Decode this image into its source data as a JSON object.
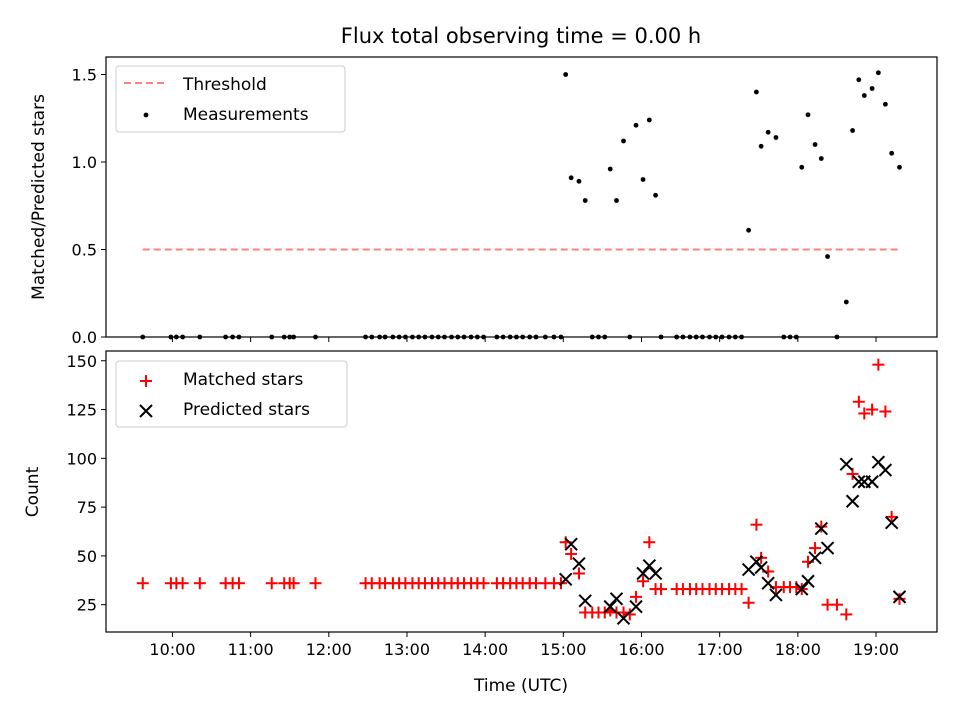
{
  "chart_data": [
    {
      "type": "scatter",
      "title": "Flux total observing time = 0.00 h",
      "ylabel": "Matched/Predicted stars",
      "xlabel": "",
      "x_unit": "hours (UTC)",
      "xlim": [
        9.15,
        19.78
      ],
      "ylim": [
        0,
        1.6
      ],
      "yticks": [
        0.0,
        0.5,
        1.0,
        1.5
      ],
      "ytick_labels": [
        "0.0",
        "0.5",
        "1.0",
        "1.5"
      ],
      "grid": false,
      "legend_position": "top-left",
      "legend": [
        "Threshold",
        "Measurements"
      ],
      "threshold": {
        "name": "Threshold",
        "value": 0.5,
        "x_range": [
          9.62,
          19.3
        ],
        "color": "#ff8080",
        "style": "dashed"
      },
      "series": [
        {
          "name": "Measurements",
          "marker": "dot",
          "color": "#000000",
          "points": [
            [
              9.62,
              0
            ],
            [
              9.98,
              0
            ],
            [
              10.05,
              0
            ],
            [
              10.13,
              0
            ],
            [
              10.35,
              0
            ],
            [
              10.68,
              0
            ],
            [
              10.77,
              0
            ],
            [
              10.85,
              0
            ],
            [
              11.27,
              0
            ],
            [
              11.43,
              0
            ],
            [
              11.5,
              0
            ],
            [
              11.55,
              0
            ],
            [
              11.83,
              0
            ],
            [
              12.47,
              0
            ],
            [
              12.55,
              0
            ],
            [
              12.65,
              0
            ],
            [
              12.72,
              0
            ],
            [
              12.82,
              0
            ],
            [
              12.9,
              0
            ],
            [
              12.98,
              0
            ],
            [
              13.07,
              0
            ],
            [
              13.15,
              0
            ],
            [
              13.23,
              0
            ],
            [
              13.32,
              0
            ],
            [
              13.4,
              0
            ],
            [
              13.48,
              0
            ],
            [
              13.57,
              0
            ],
            [
              13.65,
              0
            ],
            [
              13.73,
              0
            ],
            [
              13.82,
              0
            ],
            [
              13.9,
              0
            ],
            [
              13.98,
              0
            ],
            [
              14.15,
              0
            ],
            [
              14.23,
              0
            ],
            [
              14.32,
              0
            ],
            [
              14.4,
              0
            ],
            [
              14.48,
              0
            ],
            [
              14.57,
              0
            ],
            [
              14.65,
              0
            ],
            [
              14.77,
              0
            ],
            [
              14.88,
              0
            ],
            [
              14.97,
              0
            ],
            [
              15.03,
              1.5
            ],
            [
              15.1,
              0.91
            ],
            [
              15.2,
              0.89
            ],
            [
              15.28,
              0.78
            ],
            [
              15.37,
              0
            ],
            [
              15.45,
              0
            ],
            [
              15.53,
              0
            ],
            [
              15.6,
              0.96
            ],
            [
              15.68,
              0.78
            ],
            [
              15.77,
              1.12
            ],
            [
              15.85,
              0
            ],
            [
              15.93,
              1.21
            ],
            [
              16.02,
              0.9
            ],
            [
              16.1,
              1.24
            ],
            [
              16.18,
              0.81
            ],
            [
              16.25,
              0
            ],
            [
              16.45,
              0
            ],
            [
              16.53,
              0
            ],
            [
              16.62,
              0
            ],
            [
              16.7,
              0
            ],
            [
              16.78,
              0
            ],
            [
              16.87,
              0
            ],
            [
              16.95,
              0
            ],
            [
              17.03,
              0
            ],
            [
              17.12,
              0
            ],
            [
              17.2,
              0
            ],
            [
              17.28,
              0
            ],
            [
              17.37,
              0.61
            ],
            [
              17.47,
              1.4
            ],
            [
              17.53,
              1.09
            ],
            [
              17.62,
              1.17
            ],
            [
              17.72,
              1.14
            ],
            [
              17.82,
              0
            ],
            [
              17.9,
              0
            ],
            [
              17.98,
              0
            ],
            [
              18.05,
              0.97
            ],
            [
              18.13,
              1.27
            ],
            [
              18.22,
              1.1
            ],
            [
              18.3,
              1.02
            ],
            [
              18.38,
              0.46
            ],
            [
              18.5,
              0
            ],
            [
              18.62,
              0.2
            ],
            [
              18.7,
              1.18
            ],
            [
              18.78,
              1.47
            ],
            [
              18.85,
              1.38
            ],
            [
              18.95,
              1.42
            ],
            [
              19.03,
              1.51
            ],
            [
              19.12,
              1.33
            ],
            [
              19.2,
              1.05
            ],
            [
              19.3,
              0.97
            ]
          ]
        }
      ]
    },
    {
      "type": "scatter",
      "title": "",
      "xlabel": "Time (UTC)",
      "ylabel": "Count",
      "x_unit": "hours (UTC)",
      "xlim": [
        9.15,
        19.78
      ],
      "ylim": [
        11,
        155
      ],
      "xticks": [
        10,
        11,
        12,
        13,
        14,
        15,
        16,
        17,
        18,
        19
      ],
      "xtick_labels": [
        "10:00",
        "11:00",
        "12:00",
        "13:00",
        "14:00",
        "15:00",
        "16:00",
        "17:00",
        "18:00",
        "19:00"
      ],
      "yticks": [
        25,
        50,
        75,
        100,
        125,
        150
      ],
      "ytick_labels": [
        "25",
        "50",
        "75",
        "100",
        "125",
        "150"
      ],
      "grid": false,
      "legend_position": "top-left",
      "legend": [
        "Matched stars",
        "Predicted stars"
      ],
      "series": [
        {
          "name": "Matched stars",
          "marker": "plus",
          "color": "#ff0000",
          "points": [
            [
              9.62,
              36
            ],
            [
              9.98,
              36
            ],
            [
              10.05,
              36
            ],
            [
              10.13,
              36
            ],
            [
              10.35,
              36
            ],
            [
              10.68,
              36
            ],
            [
              10.77,
              36
            ],
            [
              10.85,
              36
            ],
            [
              11.27,
              36
            ],
            [
              11.43,
              36
            ],
            [
              11.5,
              36
            ],
            [
              11.55,
              36
            ],
            [
              11.83,
              36
            ],
            [
              12.47,
              36
            ],
            [
              12.55,
              36
            ],
            [
              12.65,
              36
            ],
            [
              12.72,
              36
            ],
            [
              12.82,
              36
            ],
            [
              12.9,
              36
            ],
            [
              12.98,
              36
            ],
            [
              13.07,
              36
            ],
            [
              13.15,
              36
            ],
            [
              13.23,
              36
            ],
            [
              13.32,
              36
            ],
            [
              13.4,
              36
            ],
            [
              13.48,
              36
            ],
            [
              13.57,
              36
            ],
            [
              13.65,
              36
            ],
            [
              13.73,
              36
            ],
            [
              13.82,
              36
            ],
            [
              13.9,
              36
            ],
            [
              13.98,
              36
            ],
            [
              14.15,
              36
            ],
            [
              14.23,
              36
            ],
            [
              14.32,
              36
            ],
            [
              14.4,
              36
            ],
            [
              14.48,
              36
            ],
            [
              14.57,
              36
            ],
            [
              14.65,
              36
            ],
            [
              14.77,
              36
            ],
            [
              14.88,
              36
            ],
            [
              14.97,
              36
            ],
            [
              15.03,
              57
            ],
            [
              15.1,
              51
            ],
            [
              15.2,
              41
            ],
            [
              15.28,
              21
            ],
            [
              15.37,
              21
            ],
            [
              15.45,
              21
            ],
            [
              15.53,
              21
            ],
            [
              15.6,
              22
            ],
            [
              15.68,
              21
            ],
            [
              15.77,
              21
            ],
            [
              15.85,
              20
            ],
            [
              15.93,
              29
            ],
            [
              16.02,
              37
            ],
            [
              16.1,
              57
            ],
            [
              16.18,
              33
            ],
            [
              16.25,
              33
            ],
            [
              16.45,
              33
            ],
            [
              16.53,
              33
            ],
            [
              16.62,
              33
            ],
            [
              16.7,
              33
            ],
            [
              16.78,
              33
            ],
            [
              16.87,
              33
            ],
            [
              16.95,
              33
            ],
            [
              17.03,
              33
            ],
            [
              17.12,
              33
            ],
            [
              17.2,
              33
            ],
            [
              17.28,
              33
            ],
            [
              17.37,
              26
            ],
            [
              17.47,
              66
            ],
            [
              17.53,
              49
            ],
            [
              17.62,
              42
            ],
            [
              17.72,
              34
            ],
            [
              17.82,
              34
            ],
            [
              17.9,
              34
            ],
            [
              17.98,
              34
            ],
            [
              18.05,
              33
            ],
            [
              18.13,
              47
            ],
            [
              18.22,
              54
            ],
            [
              18.3,
              65
            ],
            [
              18.38,
              25
            ],
            [
              18.5,
              25
            ],
            [
              18.62,
              20
            ],
            [
              18.7,
              92
            ],
            [
              18.78,
              129
            ],
            [
              18.85,
              123
            ],
            [
              18.95,
              125
            ],
            [
              19.03,
              148
            ],
            [
              19.12,
              124
            ],
            [
              19.2,
              70
            ],
            [
              19.3,
              28
            ]
          ]
        },
        {
          "name": "Predicted stars",
          "marker": "x",
          "color": "#000000",
          "points": [
            [
              15.03,
              38
            ],
            [
              15.1,
              56
            ],
            [
              15.2,
              46
            ],
            [
              15.28,
              27
            ],
            [
              15.6,
              24
            ],
            [
              15.68,
              28
            ],
            [
              15.77,
              18
            ],
            [
              15.93,
              24
            ],
            [
              16.02,
              41
            ],
            [
              16.1,
              45
            ],
            [
              16.18,
              41
            ],
            [
              17.37,
              43
            ],
            [
              17.47,
              47
            ],
            [
              17.53,
              44
            ],
            [
              17.62,
              36
            ],
            [
              17.72,
              30
            ],
            [
              18.05,
              33
            ],
            [
              18.13,
              37
            ],
            [
              18.22,
              49
            ],
            [
              18.3,
              64
            ],
            [
              18.38,
              54
            ],
            [
              18.62,
              97
            ],
            [
              18.7,
              78
            ],
            [
              18.78,
              88
            ],
            [
              18.85,
              88
            ],
            [
              18.95,
              88
            ],
            [
              19.03,
              98
            ],
            [
              19.12,
              94
            ],
            [
              19.2,
              67
            ],
            [
              19.3,
              29
            ]
          ]
        }
      ]
    }
  ]
}
